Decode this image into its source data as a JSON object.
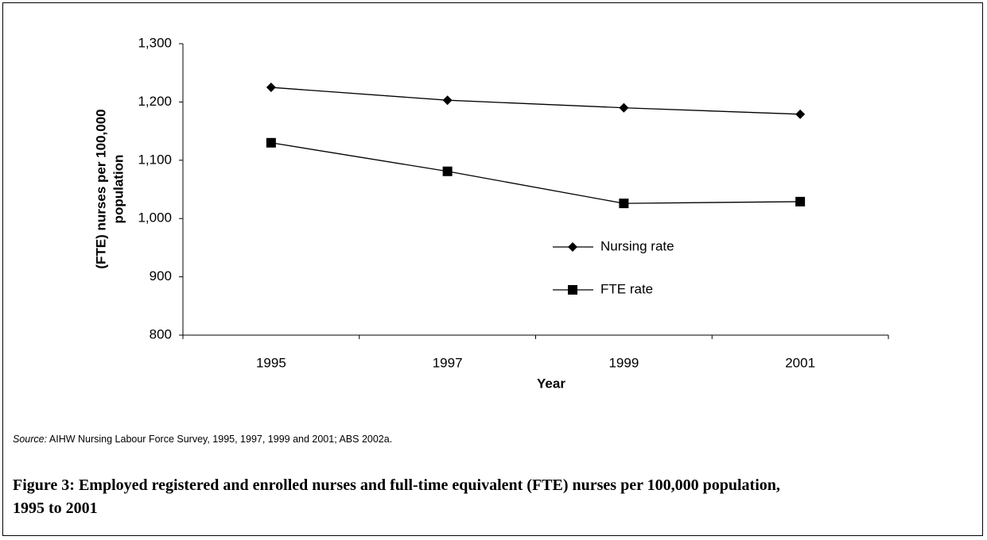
{
  "chart_data": {
    "type": "line",
    "ylabel": [
      "(FTE) nurses per 100,000",
      "population"
    ],
    "xlabel": "Year",
    "categories": [
      "1995",
      "1997",
      "1999",
      "2001"
    ],
    "series": [
      {
        "name": "Nursing rate",
        "color": "#000000",
        "marker": "diamond",
        "values": [
          1225,
          1203,
          1190,
          1179
        ]
      },
      {
        "name": "FTE rate",
        "color": "#000000",
        "marker": "square",
        "values": [
          1130,
          1081,
          1026,
          1029
        ]
      }
    ],
    "ylim": [
      800,
      1300
    ],
    "yticks": [
      {
        "value": 800,
        "label": "800"
      },
      {
        "value": 900,
        "label": "900"
      },
      {
        "value": 1000,
        "label": "1,000"
      },
      {
        "value": 1100,
        "label": "1,100"
      },
      {
        "value": 1200,
        "label": "1,200"
      },
      {
        "value": 1300,
        "label": "1,300"
      }
    ],
    "grid": false
  },
  "source_label": "Source:",
  "source": "AIHW Nursing Labour Force Survey, 1995, 1997, 1999 and 2001; ABS 2002a.",
  "caption": "Figure 3: Employed registered and enrolled nurses and full-time equivalent (FTE) nurses per 100,000 population, 1995 to 2001"
}
